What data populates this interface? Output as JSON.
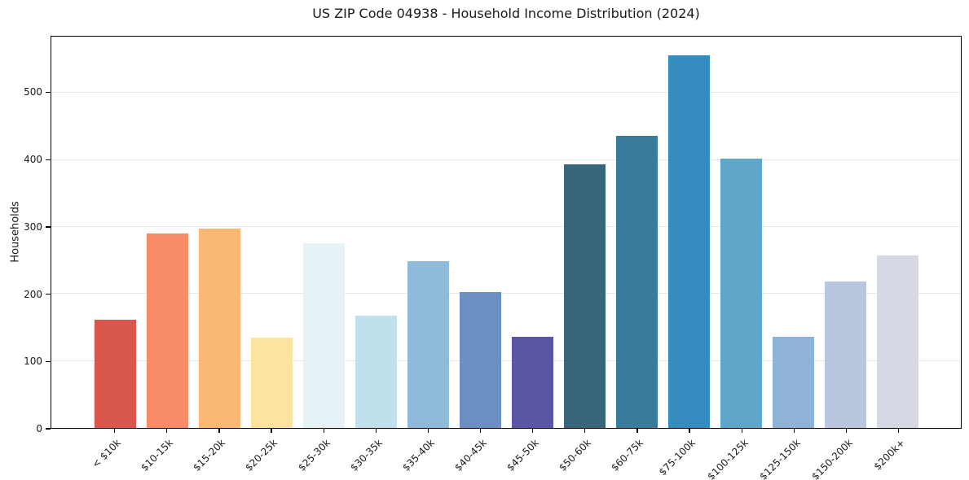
{
  "title": "US ZIP Code 04938 - Household Income Distribution (2024)",
  "chart_data": {
    "type": "bar",
    "title": "US ZIP Code 04938 - Household Income Distribution (2024)",
    "xlabel": "",
    "ylabel": "Households",
    "ylim": [
      0,
      584
    ],
    "yticks": [
      0,
      100,
      200,
      300,
      400,
      500
    ],
    "grid": "horizontal-light",
    "legend_position": "none",
    "categories": [
      "< $10k",
      "$10-15k",
      "$15-20k",
      "$20-25k",
      "$25-30k",
      "$30-35k",
      "$35-40k",
      "$40-45k",
      "$45-50k",
      "$50-60k",
      "$60-75k",
      "$75-100k",
      "$100-125k",
      "$125-150k",
      "$150-200k",
      "$200k+"
    ],
    "values": [
      161,
      290,
      297,
      135,
      276,
      168,
      249,
      203,
      136,
      394,
      436,
      556,
      402,
      136,
      218,
      258
    ],
    "bar_colors": [
      "#d9564e",
      "#f68c69",
      "#fbb873",
      "#fce4a0",
      "#e7f2f7",
      "#c0e0ed",
      "#8fbad9",
      "#6b8fc3",
      "#5a56a5",
      "#376579",
      "#387c99",
      "#358dbf",
      "#5ea6ca",
      "#8fb3d7",
      "#b9c7de",
      "#d6d8e4"
    ]
  },
  "colors": {
    "background": "#ffffff",
    "spine": "#000000",
    "grid": "#e6e6e6",
    "text": "#1a1a1a"
  }
}
